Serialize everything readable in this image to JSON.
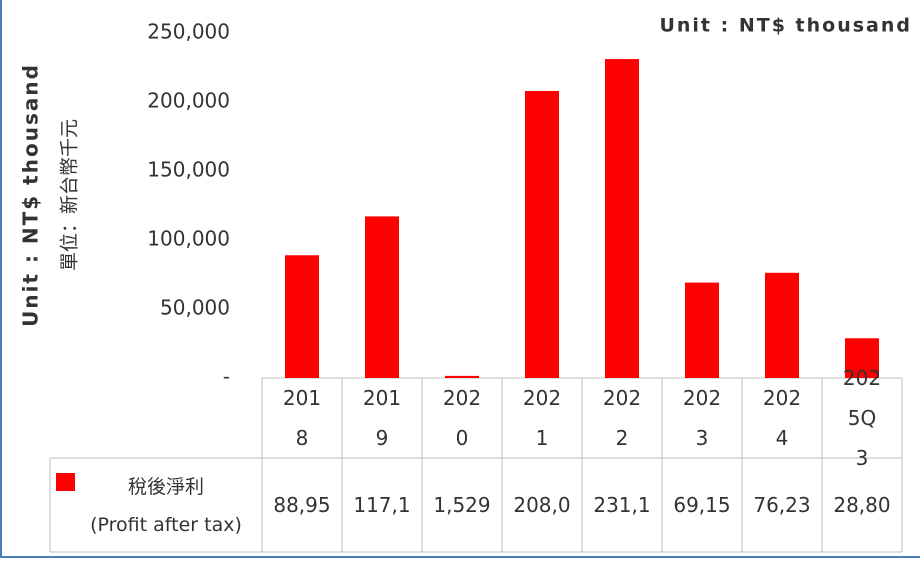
{
  "chart_data": {
    "type": "bar",
    "unit_note": "Unit : NT$ thousand",
    "y_axis_label": "Unit : NT$ thousand",
    "y_axis_label_zh": "單位：新台幣千元",
    "categories": [
      "2018",
      "2019",
      "2020",
      "2021",
      "2022",
      "2023",
      "2024",
      "2025Q3"
    ],
    "series": [
      {
        "name": "稅後淨利",
        "name_en": "(Profit after tax)",
        "color": "#ff0000",
        "values": [
          88950,
          117100,
          1529,
          208000,
          231100,
          69150,
          76230,
          28800
        ],
        "value_labels": [
          "88,95",
          "117,1",
          "1,529",
          "208,0",
          "231,1",
          "69,15",
          "76,23",
          "28,80"
        ]
      }
    ],
    "ylim": [
      0,
      250000
    ],
    "yticks": [
      {
        "value": 0,
        "label": "-"
      },
      {
        "value": 50000,
        "label": "50,000"
      },
      {
        "value": 100000,
        "label": "100,000"
      },
      {
        "value": 150000,
        "label": "150,000"
      },
      {
        "value": 200000,
        "label": "200,000"
      },
      {
        "value": 250000,
        "label": "250,000"
      }
    ],
    "grid": false
  }
}
